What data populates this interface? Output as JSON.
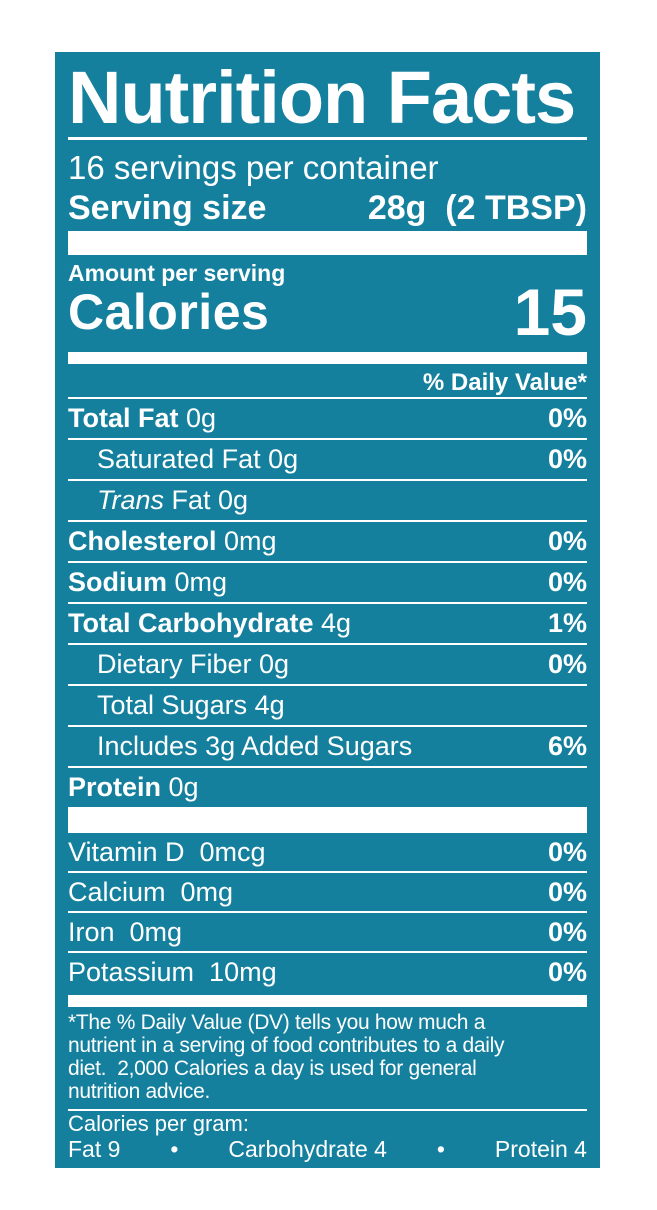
{
  "colors": {
    "page_background": "#FFFFFF",
    "label_background": "#15809E",
    "label_text": "#FFFFFF"
  },
  "label": {
    "title": "Nutrition Facts",
    "servings_per_container": "16 servings per container",
    "serving_size_label": "Serving size",
    "serving_size_value": "28g  (2 TBSP)",
    "amount_per_serving": "Amount per serving",
    "calories_label": "Calories",
    "calories_value": "15",
    "daily_value_header": "% Daily Value*",
    "nutrients": [
      {
        "strong": "Total Fat",
        "italic": "",
        "rest": " 0g",
        "pct": "0%"
      },
      {
        "strong": "",
        "italic": "",
        "rest": "Saturated Fat 0g",
        "pct": "0%"
      },
      {
        "strong": "",
        "italic": "Trans",
        "rest": " Fat 0g",
        "pct": ""
      },
      {
        "strong": "Cholesterol",
        "italic": "",
        "rest": " 0mg",
        "pct": "0%"
      },
      {
        "strong": "Sodium",
        "italic": "",
        "rest": " 0mg",
        "pct": "0%"
      },
      {
        "strong": "Total Carbohydrate",
        "italic": "",
        "rest": " 4g",
        "pct": "1%"
      },
      {
        "strong": "",
        "italic": "",
        "rest": "Dietary Fiber 0g",
        "pct": "0%"
      },
      {
        "strong": "",
        "italic": "",
        "rest": "Total Sugars 4g",
        "pct": ""
      },
      {
        "strong": "",
        "italic": "",
        "rest": "Includes 3g Added Sugars",
        "pct": "6%"
      },
      {
        "strong": "Protein",
        "italic": "",
        "rest": " 0g",
        "pct": ""
      }
    ],
    "vitamins": [
      {
        "name": "Vitamin D  0mcg",
        "pct": "0%"
      },
      {
        "name": "Calcium  0mg",
        "pct": "0%"
      },
      {
        "name": "Iron  0mg",
        "pct": "0%"
      },
      {
        "name": "Potassium  10mg",
        "pct": "0%"
      }
    ],
    "footnote": "*The % Daily Value (DV) tells you how much a\nnutrient in a serving of food contributes to a daily\ndiet.  2,000 Calories a day is used for general\nnutrition advice.",
    "calories_per_gram": {
      "heading": "Calories per gram:",
      "fat": "Fat 9",
      "carbohydrate": "Carbohydrate 4",
      "protein": "Protein 4",
      "bullet": "•"
    }
  }
}
